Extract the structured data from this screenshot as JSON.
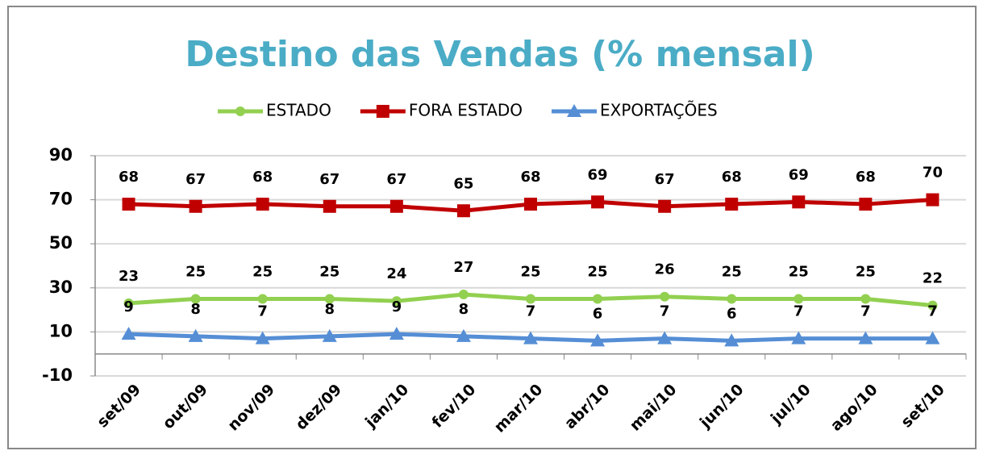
{
  "chart_data": {
    "type": "line",
    "title": "Destino das Vendas (% mensal)",
    "categories": [
      "set/09",
      "out/09",
      "nov/09",
      "dez/09",
      "jan/10",
      "fev/10",
      "mar/10",
      "abr/10",
      "mai/10",
      "jun/10",
      "jul/10",
      "ago/10",
      "set/10"
    ],
    "series": [
      {
        "name": "ESTADO",
        "color": "#92d050",
        "marker": "circle",
        "values": [
          23,
          25,
          25,
          25,
          24,
          27,
          25,
          25,
          26,
          25,
          25,
          25,
          22
        ]
      },
      {
        "name": "FORA ESTADO",
        "color": "#c00000",
        "marker": "square",
        "values": [
          68,
          67,
          68,
          67,
          67,
          65,
          68,
          69,
          67,
          68,
          69,
          68,
          70
        ]
      },
      {
        "name": "EXPORTAÇÕES",
        "color": "#558ed5",
        "marker": "triangle",
        "values": [
          9,
          8,
          7,
          8,
          9,
          8,
          7,
          6,
          7,
          6,
          7,
          7,
          7
        ]
      }
    ],
    "ylim": [
      -10,
      90
    ],
    "yticks": [
      -10,
      10,
      30,
      50,
      70,
      90
    ],
    "grid": true,
    "legend": "top"
  }
}
